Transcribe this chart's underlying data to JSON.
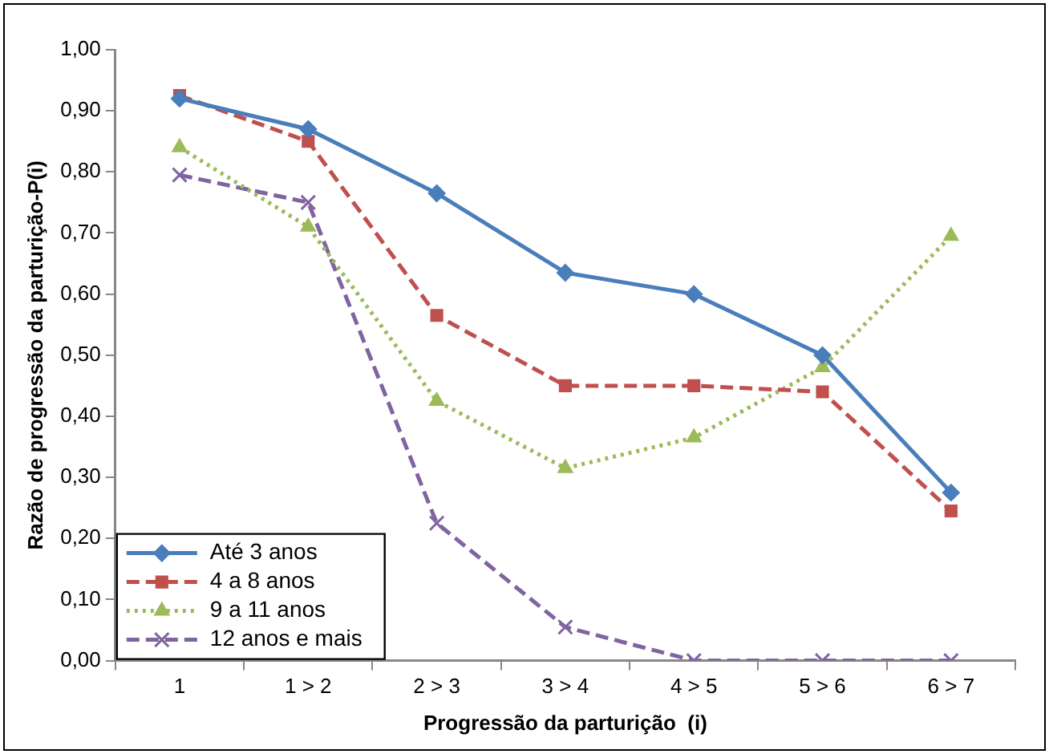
{
  "chart_data": {
    "type": "line",
    "xlabel": "Progressão da parturição  (i)",
    "ylabel": "Razão de progressão da parturição-P(i)",
    "categories": [
      "1",
      "1 > 2",
      "2 > 3",
      "3 > 4",
      "4 > 5",
      "5 > 6",
      "6 > 7"
    ],
    "ylim": [
      0,
      1
    ],
    "yticks": [
      {
        "value": 0,
        "label": "0,00"
      },
      {
        "value": 0.1,
        "label": "0,10"
      },
      {
        "value": 0.2,
        "label": "0,20"
      },
      {
        "value": 0.3,
        "label": "0,30"
      },
      {
        "value": 0.4,
        "label": "0,40"
      },
      {
        "value": 0.5,
        "label": "0,50"
      },
      {
        "value": 0.6,
        "label": "0,60"
      },
      {
        "value": 0.7,
        "label": "0,70"
      },
      {
        "value": 0.8,
        "label": "0,80"
      },
      {
        "value": 0.9,
        "label": "0,90"
      },
      {
        "value": 1,
        "label": "1,00"
      }
    ],
    "grid": false,
    "legend": "bottom left",
    "series": [
      {
        "name": "Até 3 anos",
        "color": "#4a7ebb",
        "marker": "diamond",
        "line_style": "solid",
        "values": [
          0.92,
          0.87,
          0.765,
          0.635,
          0.6,
          0.5,
          0.275
        ]
      },
      {
        "name": "4 a 8 anos",
        "color": "#c0504d",
        "marker": "square",
        "line_style": "dashed",
        "values": [
          0.925,
          0.85,
          0.565,
          0.45,
          0.45,
          0.44,
          0.245
        ]
      },
      {
        "name": "9 a 11 anos",
        "color": "#9bbb59",
        "marker": "triangle",
        "line_style": "dotted",
        "values": [
          0.84,
          0.71,
          0.425,
          0.315,
          0.365,
          0.48,
          0.695
        ]
      },
      {
        "name": "12 anos e mais",
        "color": "#8064a2",
        "marker": "cross",
        "line_style": "dashed",
        "values": [
          0.795,
          0.75,
          0.225,
          0.055,
          0,
          0,
          0
        ]
      }
    ]
  }
}
